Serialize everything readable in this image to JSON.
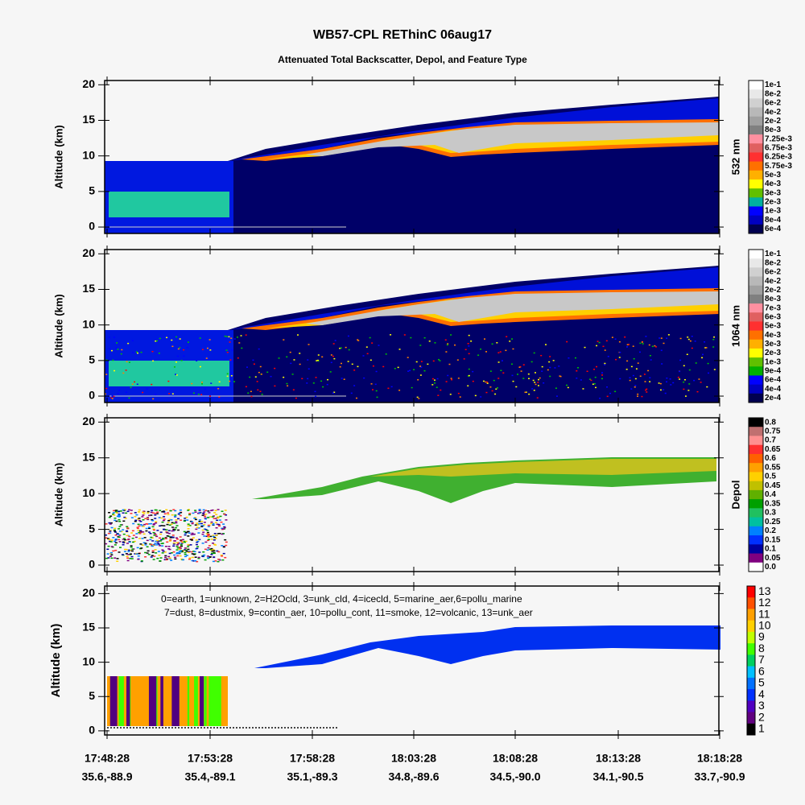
{
  "title": "WB57-CPL REThinC 06aug17",
  "subtitle": "Attenuated Total Backscatter, Depol, and Feature Type",
  "xtick_labels": [
    "17:48:28",
    "17:53:28",
    "17:58:28",
    "18:03:28",
    "18:08:28",
    "18:13:28",
    "18:18:28"
  ],
  "xtick_sublabels": [
    "35.6,-88.9",
    "35.4,-89.1",
    "35.1,-89.3",
    "34.8,-89.6",
    "34.5,-90.0",
    "34.1,-90.5",
    "33.7,-90.9"
  ],
  "panels": [
    {
      "ylabel": "Altitude (km)",
      "ylim": [
        -0.9,
        20.6
      ],
      "yticks": [
        0,
        5,
        10,
        15,
        20
      ],
      "colorbar_label": "532 nm",
      "colorbar_ticks": [
        "1e-1",
        "8e-2",
        "6e-2",
        "4e-2",
        "2e-2",
        "8e-3",
        "7.25e-3",
        "6.75e-3",
        "6.25e-3",
        "5.75e-3",
        "5e-3",
        "4e-3",
        "3e-3",
        "2e-3",
        "1e-3",
        "8e-4",
        "6e-4"
      ],
      "colorbar_colors": [
        "#ffffff",
        "#e8e8e8",
        "#d0d0d0",
        "#b8b8b8",
        "#a0a0a0",
        "#808080",
        "#ff90a0",
        "#e06060",
        "#ff3030",
        "#ff7000",
        "#ffb000",
        "#ffff00",
        "#60c000",
        "#00b0a0",
        "#0000ff",
        "#0000c0",
        "#000050"
      ]
    },
    {
      "ylabel": "Altitude (km)",
      "ylim": [
        -0.9,
        20.6
      ],
      "yticks": [
        0,
        5,
        10,
        15,
        20
      ],
      "colorbar_label": "1064 nm",
      "colorbar_ticks": [
        "1e-1",
        "8e-2",
        "6e-2",
        "4e-2",
        "2e-2",
        "8e-3",
        "7e-3",
        "6e-3",
        "5e-3",
        "4e-3",
        "3e-3",
        "2e-3",
        "1e-3",
        "9e-4",
        "6e-4",
        "4e-4",
        "2e-4"
      ],
      "colorbar_colors": [
        "#ffffff",
        "#e8e8e8",
        "#d0d0d0",
        "#b8b8b8",
        "#a0a0a0",
        "#808080",
        "#ff90a0",
        "#e06060",
        "#ff3030",
        "#ff7000",
        "#ffb000",
        "#ffff00",
        "#60c000",
        "#00b000",
        "#0000ff",
        "#0000c0",
        "#000050"
      ]
    },
    {
      "ylabel": "Altitude (km)",
      "ylim": [
        -0.9,
        20.6
      ],
      "yticks": [
        0,
        5,
        10,
        15,
        20
      ],
      "colorbar_label": "Depol",
      "colorbar_ticks": [
        "0.8",
        "0.75",
        "0.7",
        "0.65",
        "0.6",
        "0.55",
        "0.5",
        "0.45",
        "0.4",
        "0.35",
        "0.3",
        "0.25",
        "0.2",
        "0.15",
        "0.1",
        "0.05",
        "0.0"
      ],
      "colorbar_colors": [
        "#000000",
        "#c07070",
        "#ff9090",
        "#ff3030",
        "#ff6000",
        "#ffa000",
        "#ffd000",
        "#c0c000",
        "#60b000",
        "#00a000",
        "#20c060",
        "#00c0a0",
        "#0080ff",
        "#0030ff",
        "#0000a0",
        "#800080",
        "#ffffff"
      ]
    },
    {
      "ylabel": "Altitude (km)",
      "ylim": [
        -0.6,
        21.1
      ],
      "yticks": [
        0,
        5,
        10,
        15,
        20
      ],
      "colorbar_ticks": [
        13,
        12,
        11,
        10,
        9,
        8,
        7,
        6,
        5,
        4,
        3,
        2,
        1
      ],
      "colorbar_colors": [
        "#ff0000",
        "#ff5000",
        "#ffa000",
        "#ffd000",
        "#c0ff00",
        "#40ff00",
        "#00d060",
        "#00c0ff",
        "#0070ff",
        "#0030ff",
        "#5000c0",
        "#600080",
        "#000000"
      ],
      "legend": [
        "0=earth, 1=unknown, 2=H2Ocld, 3=unk_cld, 4=icecld, 5=marine_aer,6=pollu_marine",
        "7=dust, 8=dustmix, 9=contin_aer, 10=pollu_cont, 11=smoke, 12=volcanic, 13=unk_aer"
      ]
    }
  ]
}
